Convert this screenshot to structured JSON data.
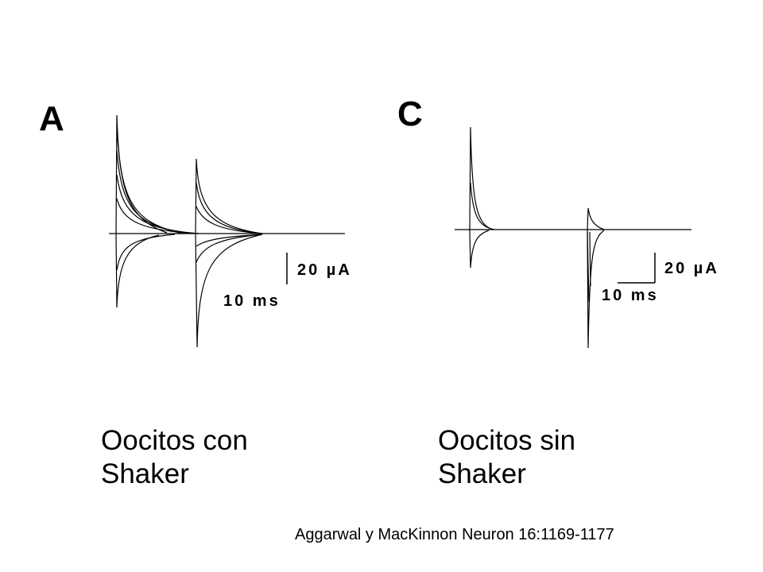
{
  "panels": [
    {
      "letter": "A",
      "scale_current": "20 µA",
      "scale_time": "10 ms",
      "caption_line1": "Oocitos con",
      "caption_line2": "Shaker"
    },
    {
      "letter": "C",
      "scale_current": "20 µA",
      "scale_time": "10 ms",
      "caption_line1": "Oocitos sin",
      "caption_line2": "Shaker"
    }
  ],
  "citation": "Aggarwal y MacKinnon Neuron 16:1169-1177"
}
